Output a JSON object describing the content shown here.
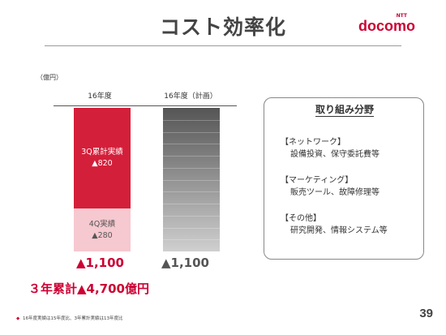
{
  "slide": {
    "title": "コスト効率化",
    "page_number": "39"
  },
  "logo": {
    "ntt": "NTT",
    "word": "docomo"
  },
  "chart_data": {
    "type": "bar",
    "unit": "（億円）",
    "categories": [
      "16年度",
      "16年度（計画）"
    ],
    "series": [
      {
        "name": "3Q累計実績",
        "category": "16年度",
        "value_label": "▲820",
        "value": 820
      },
      {
        "name": "4Q実績",
        "category": "16年度",
        "value_label": "▲280",
        "value": 280
      },
      {
        "category": "16年度（計画）",
        "value": 1100
      }
    ],
    "totals": [
      "▲1,100",
      "▲1,100"
    ],
    "cumulative": "３年累計▲4,700億円"
  },
  "panel": {
    "title": "取り組み分野",
    "categories": [
      {
        "head": "【ネットワーク】",
        "items": "設備投資、保守委託費等"
      },
      {
        "head": "【マーケティング】",
        "items": "販売ツール、故障修理等"
      },
      {
        "head": "【その他】",
        "items": "研究開発、情報システム等"
      }
    ]
  },
  "footnote": "16年度実績は15年度比、3年累計実績は13年度比",
  "colors": {
    "accent": "#cc0033",
    "bar_3q": "#d41f3a",
    "bar_4q": "#f6c8cf",
    "bar_plan": "#7a7a7a"
  }
}
